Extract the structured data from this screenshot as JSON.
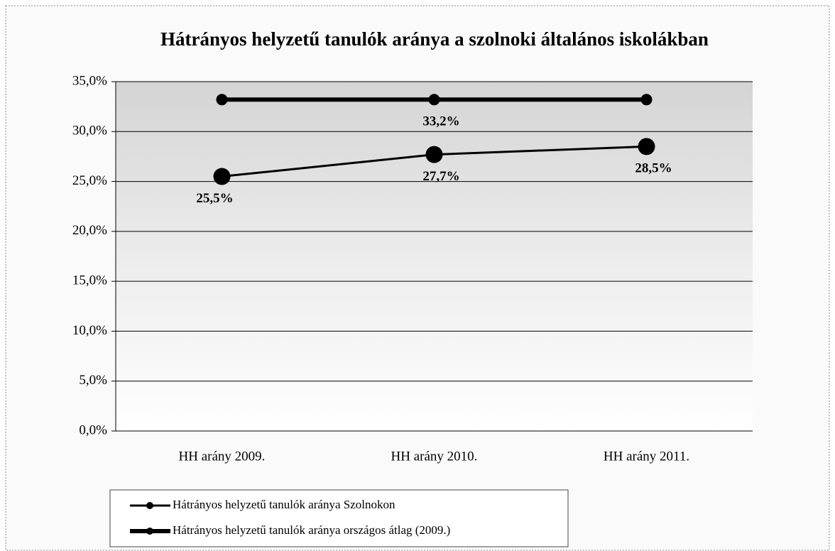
{
  "chart_data": {
    "type": "line",
    "title": "Hátrányos helyzetű tanulók aránya a szolnoki általános iskolákban",
    "categories": [
      "HH arány 2009.",
      "HH arány 2010.",
      "HH arány 2011."
    ],
    "series": [
      {
        "name": "Hátrányos helyzetű tanulók aránya Szolnokon",
        "color": "#000000",
        "values": [
          25.5,
          27.7,
          28.5
        ],
        "value_labels": [
          "25,5%",
          "27,7%",
          "28,5%"
        ]
      },
      {
        "name": "Hátrányos helyzetű tanulók aránya országos átlag (2009.)",
        "color": "#000000",
        "values": [
          33.2,
          33.2,
          33.2
        ],
        "value_labels": [
          null,
          "33,2%",
          null
        ]
      }
    ],
    "ylim": [
      0,
      35
    ],
    "yticks": [
      {
        "value": 0,
        "label": "0,0%"
      },
      {
        "value": 5,
        "label": "5,0%"
      },
      {
        "value": 10,
        "label": "10,0%"
      },
      {
        "value": 15,
        "label": "15,0%"
      },
      {
        "value": 20,
        "label": "20,0%"
      },
      {
        "value": 25,
        "label": "25,0%"
      },
      {
        "value": 30,
        "label": "30,0%"
      },
      {
        "value": 35,
        "label": "35,0%"
      }
    ],
    "grid": true,
    "legend": "bottom-left"
  }
}
